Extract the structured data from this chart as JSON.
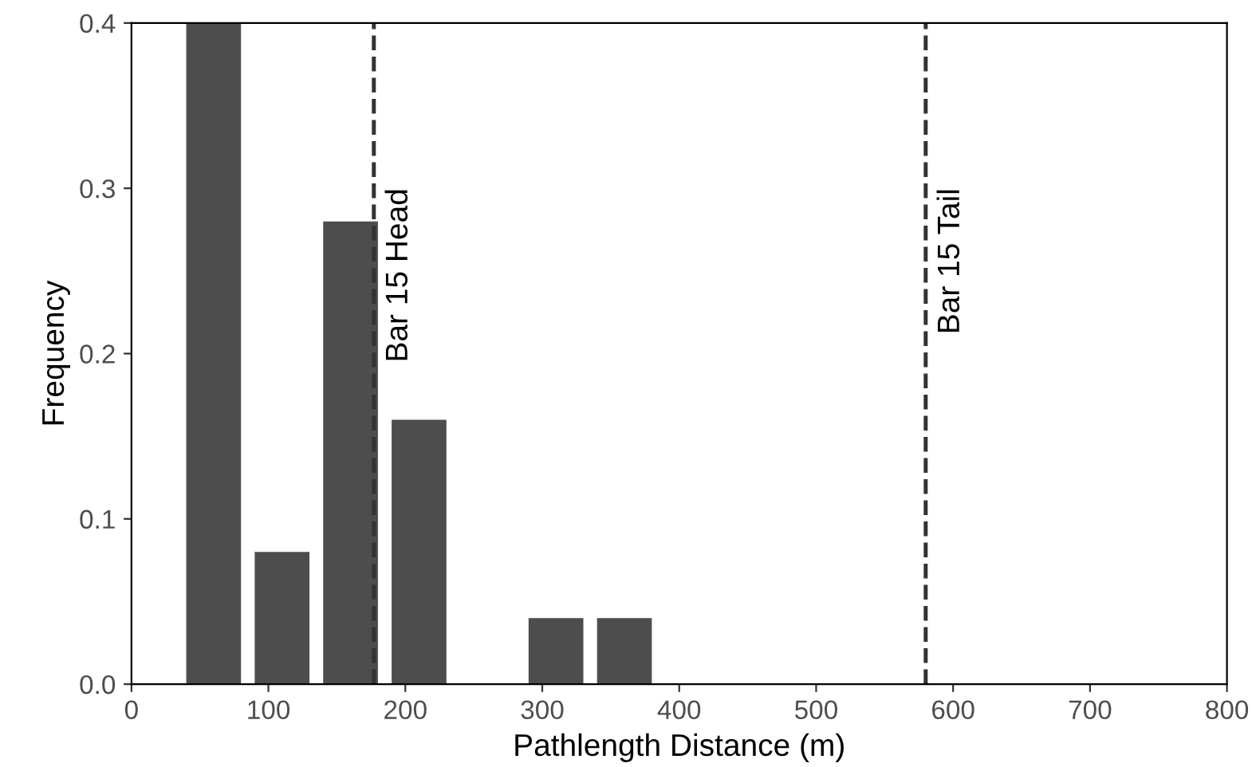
{
  "chart_data": {
    "type": "histogram",
    "xlabel": "Pathlength Distance (m)",
    "ylabel": "Frequency",
    "bins": [
      35,
      85,
      135,
      185,
      235,
      285,
      335,
      385
    ],
    "values": [
      0.4,
      0.08,
      0.28,
      0.16,
      0,
      0.04,
      0.04
    ],
    "color": "#4d4d4d",
    "xlim": [
      0,
      800
    ],
    "xticks": [
      0,
      100,
      200,
      300,
      400,
      500,
      600,
      700,
      800
    ],
    "ylim": [
      0,
      0.4
    ],
    "yticks": [
      {
        "value": 0,
        "label": "0.0"
      },
      0.1,
      0.2,
      0.3,
      0.4
    ],
    "ref_lines": [
      {
        "axis": "x",
        "value": 177,
        "label": "Bar 15 Head",
        "line_style": "dashed",
        "color": "#333333"
      },
      {
        "axis": "x",
        "value": 580,
        "label": "Bar 15 Tail",
        "line_style": "dashed",
        "color": "#333333"
      }
    ],
    "grid": false,
    "legend": false
  }
}
